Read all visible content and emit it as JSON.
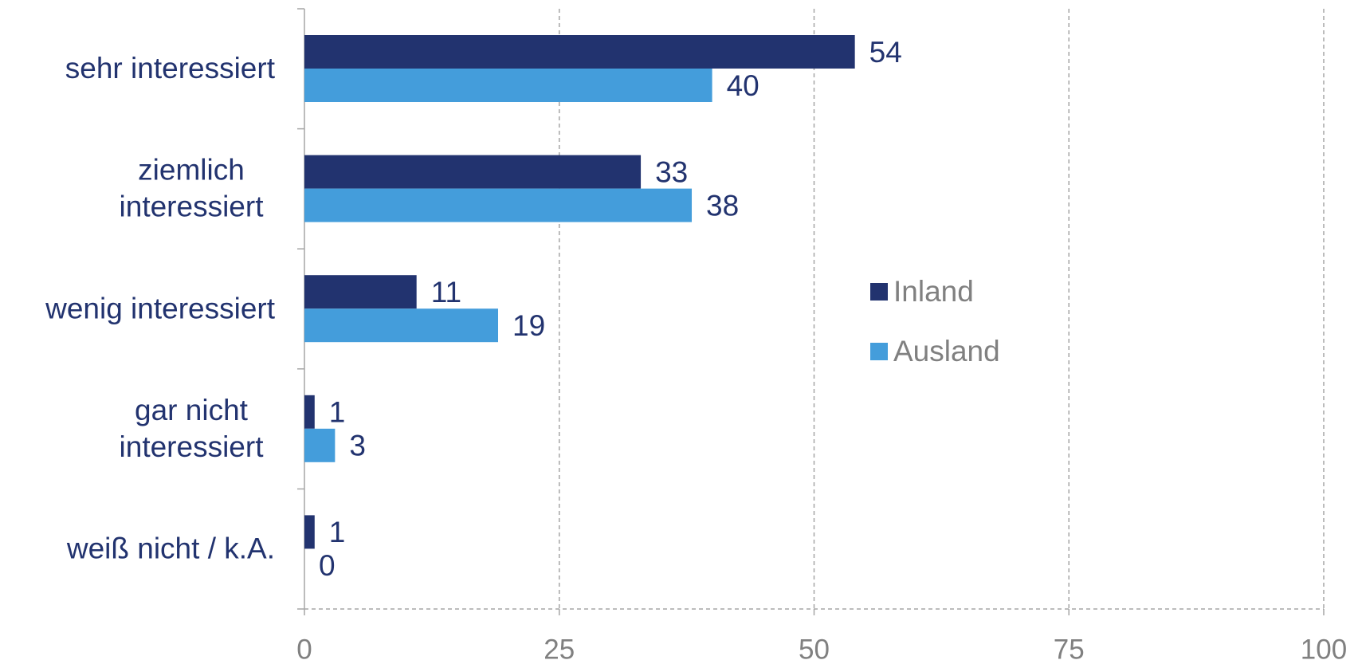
{
  "chart_data": {
    "type": "bar",
    "orientation": "horizontal",
    "categories": [
      [
        "sehr interessiert"
      ],
      [
        "ziemlich",
        "interessiert"
      ],
      [
        "wenig interessiert"
      ],
      [
        "gar nicht",
        "interessiert"
      ],
      [
        "weiß nicht / k.A."
      ]
    ],
    "series": [
      {
        "name": "Inland",
        "color": "#22336f",
        "values": [
          54,
          33,
          11,
          1,
          1
        ]
      },
      {
        "name": "Ausland",
        "color": "#449ddb",
        "values": [
          40,
          38,
          19,
          3,
          0
        ]
      }
    ],
    "xlim": [
      0,
      100
    ],
    "xticks": [
      0,
      25,
      50,
      75,
      100
    ],
    "grid": true,
    "legend": "right"
  }
}
